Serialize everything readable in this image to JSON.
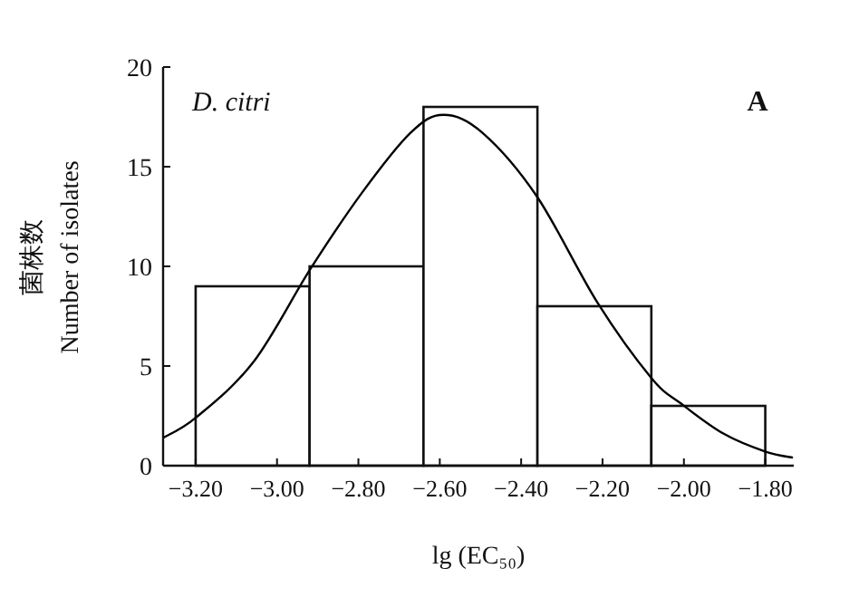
{
  "chart_data": {
    "type": "histogram",
    "title": "D. citri",
    "xlabel": "lg (EC₅₀)",
    "ylabel": "菌株数\nNumber of isolates",
    "annotations": [
      "A"
    ],
    "series": [
      {
        "color": "#ffffff",
        "bins": [
          -3.2,
          -2.92,
          -2.64,
          -2.36,
          -2.08,
          -1.8
        ],
        "values": [
          9,
          10,
          18,
          8,
          3
        ]
      },
      {
        "type": "line",
        "color": "#000000",
        "x": [
          -3.28,
          -3.2,
          -3.058,
          -2.917,
          -2.791,
          -2.672,
          -2.591,
          -2.495,
          -2.361,
          -2.213,
          -2.08,
          -2.006,
          -1.902,
          -1.799,
          -1.732
        ],
        "values": [
          1.4,
          2.4,
          5.2,
          9.9,
          13.7,
          16.7,
          17.6,
          16.7,
          13.5,
          8.2,
          4.4,
          3.1,
          1.6,
          0.7,
          0.4
        ]
      }
    ],
    "xlim": [
      -3.28,
      -1.73
    ],
    "ylim": [
      0,
      20
    ],
    "xticks": [
      {
        "value": -3.2,
        "label": "−3.20"
      },
      {
        "value": -3.0,
        "label": "−3.00"
      },
      {
        "value": -2.8,
        "label": "−2.80"
      },
      {
        "value": -2.6,
        "label": "−2.60"
      },
      {
        "value": -2.4,
        "label": "−2.40"
      },
      {
        "value": -2.2,
        "label": "−2.20"
      },
      {
        "value": -2.0,
        "label": "−2.00"
      },
      {
        "value": -1.8,
        "label": "−1.80"
      }
    ],
    "yticks": [
      0,
      5,
      10,
      15,
      20
    ],
    "grid": false
  }
}
